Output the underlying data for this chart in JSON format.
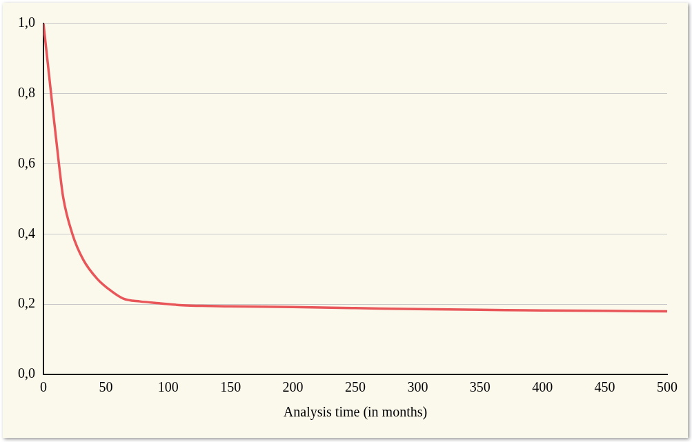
{
  "chart_data": {
    "type": "line",
    "xlabel": "Analysis time (in months)",
    "series": [
      {
        "color": "#e8565a",
        "x": [
          0,
          6.1,
          12.4,
          15.7,
          23.2,
          31.9,
          43.2,
          54.6,
          64.1,
          77.4,
          92.6,
          111.6,
          134,
          150,
          200,
          250,
          300,
          350,
          400,
          450,
          500
        ],
        "values": [
          1.0,
          0.8,
          0.6,
          0.507,
          0.4,
          0.327,
          0.272,
          0.237,
          0.216,
          0.208,
          0.203,
          0.197,
          0.195,
          0.194,
          0.192,
          0.189,
          0.186,
          0.184,
          0.182,
          0.181,
          0.18
        ]
      }
    ],
    "xlim": [
      0,
      500
    ],
    "xticks": [
      0,
      50,
      100,
      150,
      200,
      250,
      300,
      350,
      400,
      450,
      500
    ],
    "ylim": [
      0,
      1
    ],
    "yticks": [
      {
        "value": 0,
        "label": "0,0"
      },
      {
        "value": 0.2,
        "label": "0,2"
      },
      {
        "value": 0.4,
        "label": "0,4"
      },
      {
        "value": 0.6,
        "label": "0,6"
      },
      {
        "value": 0.8,
        "label": "0,8"
      },
      {
        "value": 1,
        "label": "1,0"
      }
    ],
    "grid": "y",
    "legend": false,
    "marker": "none",
    "line_style": "solid"
  }
}
